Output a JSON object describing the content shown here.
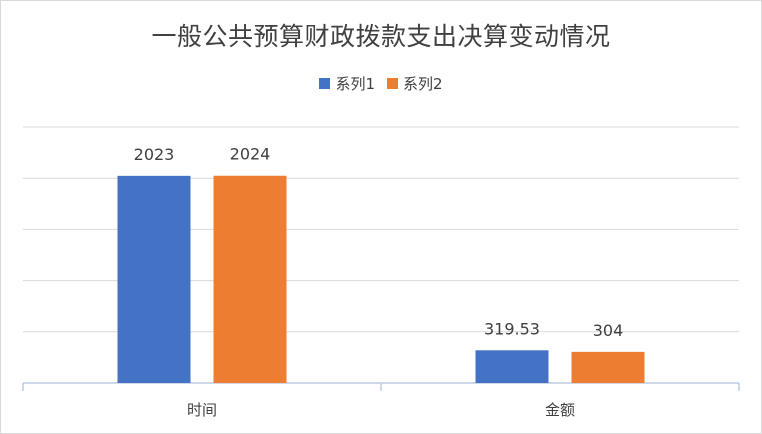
{
  "chart_data": {
    "type": "bar",
    "title": "一般公共预算财政拨款支出决算变动情况",
    "categories": [
      "时间",
      "金额"
    ],
    "series": [
      {
        "name": "系列1",
        "color": "#4472C4",
        "values": [
          2023,
          319.53
        ],
        "labels": [
          "2023",
          "319.53"
        ]
      },
      {
        "name": "系列2",
        "color": "#ED7D31",
        "values": [
          2024,
          304
        ],
        "labels": [
          "2024",
          "304"
        ]
      }
    ],
    "ylim": [
      0,
      2500
    ],
    "grid": true,
    "legend_position": "top"
  }
}
